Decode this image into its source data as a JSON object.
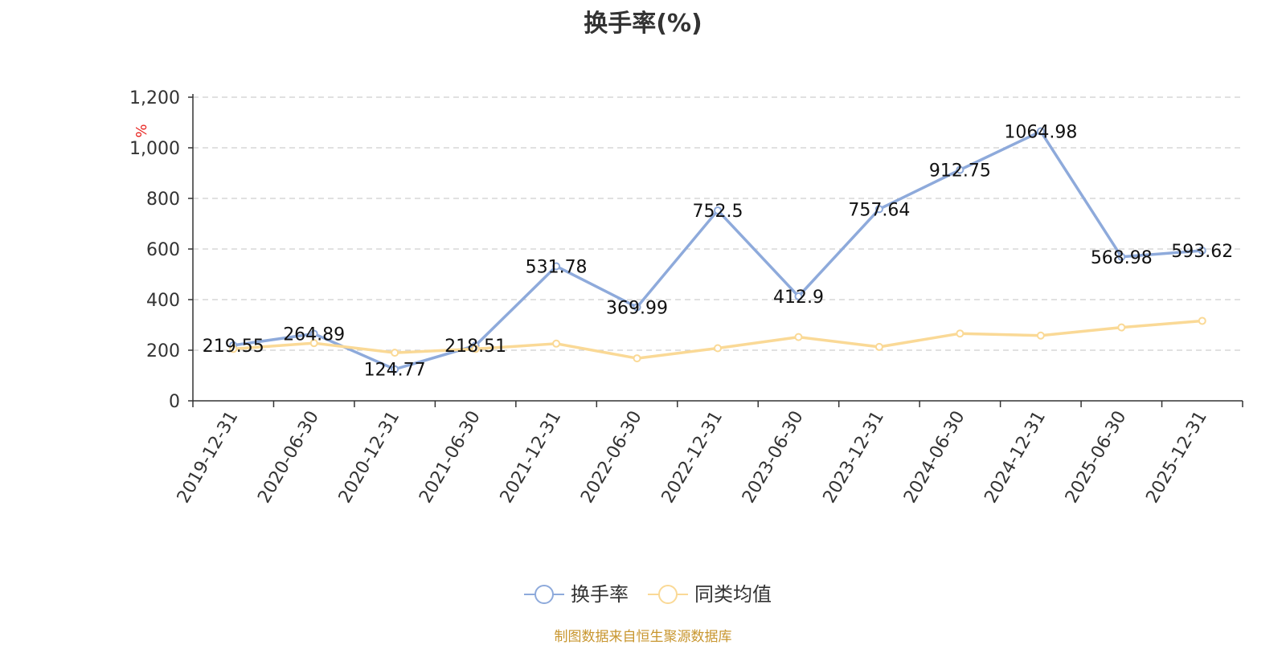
{
  "chart_data": {
    "type": "line",
    "title": "换手率(%)",
    "ylabel": "%",
    "xlabel": "",
    "ylim": [
      0,
      1200
    ],
    "yticks": [
      0,
      200,
      400,
      600,
      800,
      1000,
      1200
    ],
    "ytick_labels": [
      "0",
      "200",
      "400",
      "600",
      "800",
      "1,000",
      "1,200"
    ],
    "grid": true,
    "legend_position": "bottom-center",
    "categories": [
      "2019-12-31",
      "2020-06-30",
      "2020-12-31",
      "2021-06-30",
      "2021-12-31",
      "2022-06-30",
      "2022-12-31",
      "2023-06-30",
      "2023-12-31",
      "2024-06-30",
      "2024-12-31",
      "2025-06-30",
      "2025-12-31"
    ],
    "series": [
      {
        "name": "换手率",
        "color": "#8eaadb",
        "values": [
          219.55,
          264.89,
          124.77,
          218.51,
          531.78,
          369.99,
          752.5,
          412.9,
          757.64,
          912.75,
          1064.98,
          568.98,
          593.62
        ],
        "labels": [
          "219.55",
          "264.89",
          "124.77",
          "218.51",
          "531.78",
          "369.99",
          "752.5",
          "412.9",
          "757.64",
          "912.75",
          "1064.98",
          "568.98",
          "593.62"
        ]
      },
      {
        "name": "同类均值",
        "color": "#fad996",
        "values": [
          205,
          228,
          190,
          205,
          226,
          168,
          208,
          252,
          213,
          266,
          258,
          290,
          316
        ]
      }
    ]
  },
  "source_note": "制图数据来自恒生聚源数据库"
}
